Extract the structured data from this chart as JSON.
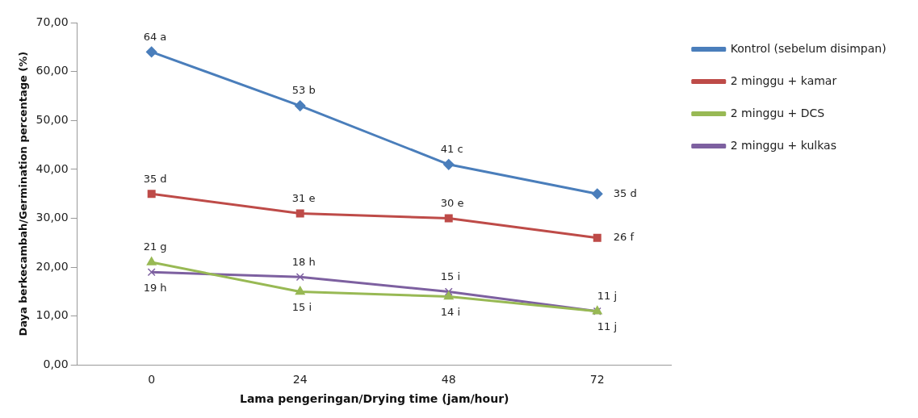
{
  "chart_data": {
    "type": "line",
    "xlabel": "Lama pengeringan/Drying time (jam/hour)",
    "ylabel": "Daya berkecambah/Germination percentage (%)",
    "categories": [
      "0",
      "24",
      "48",
      "72"
    ],
    "ylim": [
      0,
      70
    ],
    "yticks": [
      {
        "value": 0,
        "label": "0,00"
      },
      {
        "value": 10,
        "label": "10,00"
      },
      {
        "value": 20,
        "label": "20,00"
      },
      {
        "value": 30,
        "label": "30,00"
      },
      {
        "value": 40,
        "label": "40,00"
      },
      {
        "value": 50,
        "label": "50,00"
      },
      {
        "value": 60,
        "label": "60,00"
      },
      {
        "value": 70,
        "label": "70,00"
      }
    ],
    "grid": false,
    "legend": "top right",
    "line_style": "solid",
    "series": [
      {
        "name": "Kontrol (sebelum disimpan)",
        "color": "#4a7ebb",
        "marker": "diamond",
        "values": [
          64,
          53,
          41,
          35
        ],
        "value_labels": [
          "64 a",
          "53 b",
          "41 c",
          "35 d"
        ]
      },
      {
        "name": "2 minggu + kamar",
        "color": "#be4b48",
        "marker": "square",
        "values": [
          35,
          31,
          30,
          26
        ],
        "value_labels": [
          "35 d",
          "31 e",
          "30 e",
          "26 f"
        ]
      },
      {
        "name": "2 minggu + DCS",
        "color": "#98b954",
        "marker": "triangle",
        "values": [
          21,
          15,
          14,
          11
        ],
        "value_labels": [
          "21 g",
          "15 i",
          "14 i",
          "11 j"
        ]
      },
      {
        "name": "2 minggu + kulkas",
        "color": "#7d60a0",
        "marker": "cross",
        "values": [
          19,
          18,
          15,
          11
        ],
        "value_labels": [
          "19 h",
          "18 h",
          "15 i",
          "11 j"
        ]
      }
    ]
  }
}
